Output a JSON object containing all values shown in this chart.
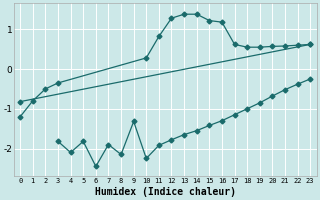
{
  "xlabel": "Humidex (Indice chaleur)",
  "bg_color": "#cce8e8",
  "grid_color": "#ffffff",
  "line_color": "#1a6b6b",
  "markersize": 2.5,
  "linewidth": 0.9,
  "xlim": [
    -0.5,
    23.5
  ],
  "ylim": [
    -2.7,
    1.65
  ],
  "xticks": [
    0,
    1,
    2,
    3,
    4,
    5,
    6,
    7,
    8,
    9,
    10,
    11,
    12,
    13,
    14,
    15,
    16,
    17,
    18,
    19,
    20,
    21,
    22,
    23
  ],
  "yticks": [
    -2,
    -1,
    0,
    1
  ],
  "series1_x": [
    0,
    1,
    2,
    3,
    10,
    11,
    12,
    13,
    14,
    15,
    16,
    17,
    18,
    19,
    20,
    21,
    22,
    23
  ],
  "series1_y": [
    -1.2,
    -0.8,
    -0.5,
    -0.35,
    0.28,
    0.82,
    1.28,
    1.38,
    1.38,
    1.22,
    1.18,
    0.62,
    0.55,
    0.55,
    0.57,
    0.58,
    0.6,
    0.62
  ],
  "series2_x": [
    0,
    23
  ],
  "series2_y": [
    -0.82,
    0.62
  ],
  "series3_x": [
    3,
    4,
    5,
    6,
    7,
    8,
    9,
    10,
    11,
    12,
    13,
    14,
    15,
    16,
    17,
    18,
    19,
    20,
    21,
    22,
    23
  ],
  "series3_y": [
    -1.82,
    -2.1,
    -1.82,
    -2.45,
    -1.9,
    -2.15,
    -1.32,
    -2.25,
    -1.92,
    -1.78,
    -1.65,
    -1.55,
    -1.42,
    -1.3,
    -1.15,
    -1.0,
    -0.85,
    -0.68,
    -0.52,
    -0.38,
    -0.25
  ]
}
